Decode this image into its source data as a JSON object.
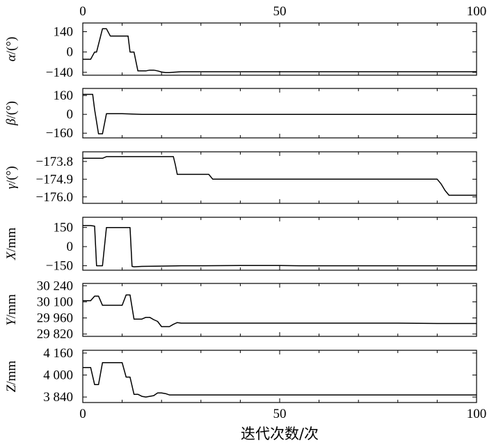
{
  "chart_data": {
    "type": "line",
    "xlabel": "迭代次数/次",
    "xlim": [
      0,
      100
    ],
    "xticks": [
      0,
      50,
      100
    ],
    "panels": [
      {
        "ylabel": "α/(°)",
        "ylabel_prefix": "α",
        "ylabel_suffix": "/(°)",
        "ylim": [
          -160,
          200
        ],
        "yticks": [
          140,
          0,
          -140
        ],
        "ytick_labels": [
          "140",
          "0",
          "−140"
        ],
        "x": [
          0,
          2,
          3,
          3.5,
          5,
          6,
          7,
          11,
          11.5,
          12,
          12.5,
          13,
          14,
          15,
          16,
          17,
          18,
          19,
          20,
          21,
          22,
          23,
          24,
          25,
          27,
          30,
          40,
          50,
          60,
          70,
          80,
          90,
          100
        ],
        "y": [
          -50,
          -50,
          0,
          0,
          160,
          160,
          110,
          110,
          110,
          0,
          0,
          0,
          -130,
          -130,
          -130,
          -125,
          -125,
          -130,
          -138,
          -142,
          -142,
          -140,
          -138,
          -136,
          -136,
          -136,
          -136,
          -136,
          -136,
          -136,
          -136,
          -136,
          -136
        ]
      },
      {
        "ylabel": "β/(°)",
        "ylabel_prefix": "β",
        "ylabel_suffix": "/(°)",
        "ylim": [
          -200,
          220
        ],
        "yticks": [
          160,
          0,
          -160
        ],
        "ytick_labels": [
          "160",
          "0",
          "−160"
        ],
        "x": [
          0,
          2,
          2.5,
          3,
          4,
          5,
          6,
          7,
          10,
          15,
          20,
          30,
          50,
          70,
          100
        ],
        "y": [
          170,
          170,
          170,
          40,
          -165,
          -165,
          5,
          5,
          5,
          0,
          0,
          0,
          0,
          0,
          0
        ]
      },
      {
        "ylabel": "γ/(°)",
        "ylabel_prefix": "γ",
        "ylabel_suffix": "/(°)",
        "ylim": [
          -176.4,
          -173.2
        ],
        "yticks": [
          -173.8,
          -174.9,
          -176.0
        ],
        "ytick_labels": [
          "−173.8",
          "−174.9",
          "−176.0"
        ],
        "x": [
          0,
          4,
          5,
          6,
          10,
          20,
          23,
          23.5,
          24,
          32,
          33,
          40,
          50,
          60,
          70,
          80,
          90,
          91,
          92,
          93,
          100
        ],
        "y": [
          -173.6,
          -173.6,
          -173.6,
          -173.5,
          -173.5,
          -173.5,
          -173.5,
          -174.0,
          -174.6,
          -174.6,
          -174.9,
          -174.9,
          -174.9,
          -174.9,
          -174.9,
          -174.9,
          -174.9,
          -175.2,
          -175.6,
          -175.9,
          -175.9
        ]
      },
      {
        "ylabel": "X/mm",
        "ylabel_prefix": "X",
        "ylabel_suffix": "/mm",
        "ylim": [
          -185,
          230
        ],
        "yticks": [
          150,
          0,
          -150
        ],
        "ytick_labels": [
          "150",
          "0",
          "−150"
        ],
        "x": [
          0,
          2,
          3,
          3.5,
          4,
          5,
          6,
          7,
          10,
          11,
          12,
          12.5,
          13,
          15,
          20,
          25,
          30,
          40,
          50,
          55,
          60,
          70,
          80,
          100
        ],
        "y": [
          165,
          165,
          160,
          -150,
          -150,
          -150,
          150,
          150,
          150,
          150,
          150,
          -155,
          -158,
          -155,
          -153,
          -150,
          -150,
          -148,
          -148,
          -150,
          -150,
          -150,
          -150,
          -150
        ]
      },
      {
        "ylabel": "Y/mm",
        "ylabel_prefix": "Y",
        "ylabel_suffix": "/mm",
        "ylim": [
          29800,
          30260
        ],
        "yticks": [
          30240,
          30100,
          29960,
          29820
        ],
        "ytick_labels": [
          "30 240",
          "30 100",
          "29 960",
          "29 820"
        ],
        "x": [
          0,
          2,
          3,
          4,
          5,
          6,
          10,
          11,
          12,
          13,
          14,
          15,
          16,
          17,
          18,
          19,
          20,
          21,
          22,
          23,
          24,
          25,
          26,
          30,
          40,
          50,
          60,
          70,
          80,
          90,
          100
        ],
        "y": [
          30110,
          30110,
          30150,
          30150,
          30070,
          30070,
          30070,
          30160,
          30160,
          29950,
          29950,
          29950,
          29965,
          29965,
          29945,
          29930,
          29885,
          29885,
          29885,
          29905,
          29920,
          29915,
          29915,
          29915,
          29915,
          29915,
          29915,
          29915,
          29915,
          29912,
          29912
        ]
      },
      {
        "ylabel": "Z/mm",
        "ylabel_prefix": "Z",
        "ylabel_suffix": "/mm",
        "ylim": [
          3800,
          4180
        ],
        "yticks": [
          4160,
          4000,
          3840
        ],
        "ytick_labels": [
          "4 160",
          "4 000",
          "3 840"
        ],
        "x": [
          0,
          2,
          3,
          4,
          5,
          6,
          10,
          11,
          12,
          13,
          14,
          15,
          16,
          17,
          18,
          19,
          20,
          21,
          22,
          23,
          24,
          25,
          26,
          30,
          40,
          50,
          60,
          70,
          80,
          90,
          100
        ],
        "y": [
          4055,
          4055,
          3930,
          3930,
          4090,
          4090,
          4090,
          3985,
          3985,
          3860,
          3860,
          3845,
          3840,
          3845,
          3850,
          3870,
          3870,
          3865,
          3855,
          3855,
          3855,
          3855,
          3855,
          3855,
          3855,
          3855,
          3855,
          3855,
          3855,
          3855,
          3855
        ]
      }
    ]
  }
}
